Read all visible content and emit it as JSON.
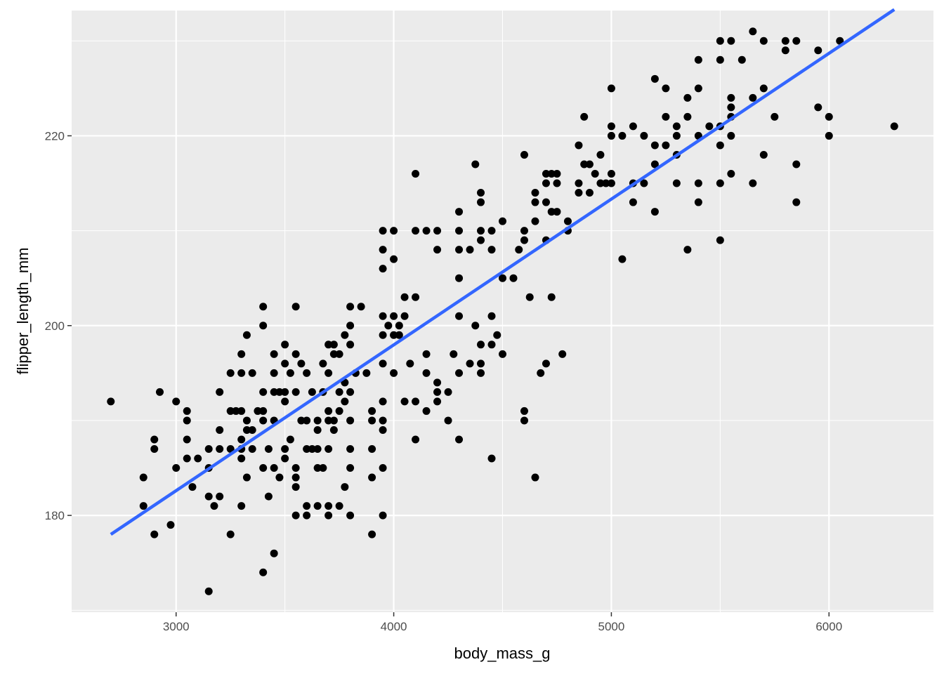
{
  "chart_data": {
    "type": "scatter",
    "title": "",
    "xlabel": "body_mass_g",
    "ylabel": "flipper_length_mm",
    "xlim": [
      2520,
      6480
    ],
    "ylim": [
      169.8,
      233.2
    ],
    "x_ticks": [
      3000,
      4000,
      5000,
      6000
    ],
    "x_tick_labels": [
      "3000",
      "4000",
      "5000",
      "6000"
    ],
    "y_ticks": [
      180,
      200,
      220
    ],
    "y_tick_labels": [
      "180",
      "200",
      "220"
    ],
    "grid": true,
    "panel_background": "#ebebeb",
    "grid_color": "#ffffff",
    "point_color": "#000000",
    "trend_line": {
      "method": "lm",
      "color": "#3366ff",
      "x": [
        2700,
        6300
      ],
      "y": [
        178.0,
        233.3
      ]
    },
    "points": [
      [
        2700,
        192
      ],
      [
        2850,
        184
      ],
      [
        2850,
        181
      ],
      [
        2900,
        188
      ],
      [
        2900,
        187
      ],
      [
        2900,
        178
      ],
      [
        2925,
        193
      ],
      [
        2975,
        179
      ],
      [
        3000,
        192
      ],
      [
        3000,
        185
      ],
      [
        3050,
        191
      ],
      [
        3050,
        190
      ],
      [
        3050,
        188
      ],
      [
        3050,
        186
      ],
      [
        3075,
        183
      ],
      [
        3100,
        186
      ],
      [
        3150,
        187
      ],
      [
        3150,
        185
      ],
      [
        3150,
        182
      ],
      [
        3150,
        172
      ],
      [
        3175,
        181
      ],
      [
        3200,
        193
      ],
      [
        3200,
        189
      ],
      [
        3200,
        187
      ],
      [
        3200,
        182
      ],
      [
        3250,
        195
      ],
      [
        3250,
        191
      ],
      [
        3250,
        187
      ],
      [
        3250,
        178
      ],
      [
        3275,
        191
      ],
      [
        3300,
        197
      ],
      [
        3300,
        195
      ],
      [
        3300,
        191
      ],
      [
        3300,
        188
      ],
      [
        3300,
        187
      ],
      [
        3300,
        186
      ],
      [
        3300,
        181
      ],
      [
        3325,
        199
      ],
      [
        3325,
        190
      ],
      [
        3325,
        189
      ],
      [
        3325,
        184
      ],
      [
        3350,
        195
      ],
      [
        3350,
        189
      ],
      [
        3350,
        187
      ],
      [
        3375,
        191
      ],
      [
        3400,
        202
      ],
      [
        3400,
        200
      ],
      [
        3400,
        193
      ],
      [
        3400,
        191
      ],
      [
        3400,
        190
      ],
      [
        3400,
        185
      ],
      [
        3400,
        174
      ],
      [
        3425,
        187
      ],
      [
        3425,
        182
      ],
      [
        3450,
        197
      ],
      [
        3450,
        195
      ],
      [
        3450,
        193
      ],
      [
        3450,
        190
      ],
      [
        3450,
        185
      ],
      [
        3450,
        176
      ],
      [
        3475,
        193
      ],
      [
        3475,
        184
      ],
      [
        3500,
        198
      ],
      [
        3500,
        196
      ],
      [
        3500,
        193
      ],
      [
        3500,
        192
      ],
      [
        3500,
        187
      ],
      [
        3500,
        186
      ],
      [
        3525,
        195
      ],
      [
        3525,
        188
      ],
      [
        3550,
        197
      ],
      [
        3550,
        193
      ],
      [
        3550,
        185
      ],
      [
        3550,
        184
      ],
      [
        3550,
        183
      ],
      [
        3550,
        180
      ],
      [
        3550,
        202
      ],
      [
        3575,
        196
      ],
      [
        3575,
        190
      ],
      [
        3600,
        195
      ],
      [
        3600,
        190
      ],
      [
        3600,
        187
      ],
      [
        3600,
        181
      ],
      [
        3600,
        180
      ],
      [
        3625,
        193
      ],
      [
        3625,
        187
      ],
      [
        3650,
        190
      ],
      [
        3650,
        189
      ],
      [
        3650,
        187
      ],
      [
        3650,
        185
      ],
      [
        3650,
        181
      ],
      [
        3675,
        196
      ],
      [
        3675,
        193
      ],
      [
        3675,
        185
      ],
      [
        3700,
        198
      ],
      [
        3700,
        195
      ],
      [
        3700,
        191
      ],
      [
        3700,
        190
      ],
      [
        3700,
        187
      ],
      [
        3700,
        181
      ],
      [
        3700,
        180
      ],
      [
        3725,
        198
      ],
      [
        3725,
        197
      ],
      [
        3725,
        190
      ],
      [
        3725,
        189
      ],
      [
        3750,
        197
      ],
      [
        3750,
        193
      ],
      [
        3750,
        191
      ],
      [
        3750,
        181
      ],
      [
        3775,
        199
      ],
      [
        3775,
        194
      ],
      [
        3775,
        192
      ],
      [
        3775,
        183
      ],
      [
        3800,
        202
      ],
      [
        3800,
        200
      ],
      [
        3800,
        198
      ],
      [
        3800,
        193
      ],
      [
        3800,
        190
      ],
      [
        3800,
        187
      ],
      [
        3800,
        185
      ],
      [
        3800,
        180
      ],
      [
        3825,
        195
      ],
      [
        3850,
        202
      ],
      [
        3875,
        195
      ],
      [
        3900,
        191
      ],
      [
        3900,
        190
      ],
      [
        3900,
        187
      ],
      [
        3900,
        184
      ],
      [
        3900,
        178
      ],
      [
        3950,
        210
      ],
      [
        3950,
        208
      ],
      [
        3950,
        206
      ],
      [
        3950,
        201
      ],
      [
        3950,
        199
      ],
      [
        3950,
        196
      ],
      [
        3950,
        192
      ],
      [
        3950,
        190
      ],
      [
        3950,
        189
      ],
      [
        3950,
        185
      ],
      [
        3950,
        180
      ],
      [
        3975,
        200
      ],
      [
        4000,
        210
      ],
      [
        4000,
        207
      ],
      [
        4000,
        201
      ],
      [
        4000,
        199
      ],
      [
        4000,
        195
      ],
      [
        4025,
        200
      ],
      [
        4025,
        199
      ],
      [
        4050,
        203
      ],
      [
        4050,
        201
      ],
      [
        4050,
        192
      ],
      [
        4075,
        196
      ],
      [
        4100,
        216
      ],
      [
        4100,
        210
      ],
      [
        4100,
        203
      ],
      [
        4100,
        192
      ],
      [
        4100,
        188
      ],
      [
        4150,
        210
      ],
      [
        4150,
        197
      ],
      [
        4150,
        195
      ],
      [
        4150,
        191
      ],
      [
        4200,
        210
      ],
      [
        4200,
        208
      ],
      [
        4200,
        194
      ],
      [
        4200,
        193
      ],
      [
        4200,
        192
      ],
      [
        4250,
        190
      ],
      [
        4250,
        193
      ],
      [
        4275,
        197
      ],
      [
        4300,
        212
      ],
      [
        4300,
        210
      ],
      [
        4300,
        208
      ],
      [
        4300,
        205
      ],
      [
        4300,
        201
      ],
      [
        4300,
        195
      ],
      [
        4300,
        188
      ],
      [
        4350,
        196
      ],
      [
        4350,
        208
      ],
      [
        4375,
        217
      ],
      [
        4375,
        200
      ],
      [
        4400,
        214
      ],
      [
        4400,
        213
      ],
      [
        4400,
        210
      ],
      [
        4400,
        209
      ],
      [
        4400,
        198
      ],
      [
        4400,
        196
      ],
      [
        4400,
        195
      ],
      [
        4450,
        210
      ],
      [
        4450,
        208
      ],
      [
        4450,
        201
      ],
      [
        4450,
        198
      ],
      [
        4450,
        186
      ],
      [
        4475,
        199
      ],
      [
        4500,
        211
      ],
      [
        4500,
        205
      ],
      [
        4500,
        197
      ],
      [
        4550,
        205
      ],
      [
        4575,
        208
      ],
      [
        4600,
        218
      ],
      [
        4600,
        210
      ],
      [
        4600,
        209
      ],
      [
        4600,
        191
      ],
      [
        4600,
        190
      ],
      [
        4625,
        203
      ],
      [
        4650,
        214
      ],
      [
        4650,
        213
      ],
      [
        4650,
        211
      ],
      [
        4650,
        184
      ],
      [
        4675,
        195
      ],
      [
        4700,
        216
      ],
      [
        4700,
        215
      ],
      [
        4700,
        213
      ],
      [
        4700,
        209
      ],
      [
        4700,
        196
      ],
      [
        4725,
        216
      ],
      [
        4725,
        212
      ],
      [
        4725,
        203
      ],
      [
        4750,
        216
      ],
      [
        4750,
        215
      ],
      [
        4750,
        212
      ],
      [
        4775,
        197
      ],
      [
        4800,
        211
      ],
      [
        4800,
        210
      ],
      [
        4850,
        219
      ],
      [
        4850,
        215
      ],
      [
        4850,
        214
      ],
      [
        4875,
        222
      ],
      [
        4875,
        217
      ],
      [
        4900,
        217
      ],
      [
        4900,
        214
      ],
      [
        4925,
        216
      ],
      [
        4950,
        218
      ],
      [
        4950,
        215
      ],
      [
        4975,
        215
      ],
      [
        5000,
        225
      ],
      [
        5000,
        221
      ],
      [
        5000,
        220
      ],
      [
        5000,
        216
      ],
      [
        5000,
        215
      ],
      [
        5050,
        220
      ],
      [
        5050,
        207
      ],
      [
        5100,
        221
      ],
      [
        5100,
        215
      ],
      [
        5100,
        213
      ],
      [
        5150,
        220
      ],
      [
        5150,
        215
      ],
      [
        5200,
        226
      ],
      [
        5200,
        219
      ],
      [
        5200,
        217
      ],
      [
        5200,
        212
      ],
      [
        5250,
        225
      ],
      [
        5250,
        222
      ],
      [
        5250,
        219
      ],
      [
        5300,
        221
      ],
      [
        5300,
        220
      ],
      [
        5300,
        218
      ],
      [
        5300,
        215
      ],
      [
        5350,
        224
      ],
      [
        5350,
        222
      ],
      [
        5350,
        208
      ],
      [
        5400,
        228
      ],
      [
        5400,
        225
      ],
      [
        5400,
        220
      ],
      [
        5400,
        215
      ],
      [
        5400,
        213
      ],
      [
        5450,
        221
      ],
      [
        5500,
        230
      ],
      [
        5500,
        228
      ],
      [
        5500,
        221
      ],
      [
        5500,
        219
      ],
      [
        5500,
        215
      ],
      [
        5500,
        209
      ],
      [
        5550,
        230
      ],
      [
        5550,
        224
      ],
      [
        5550,
        223
      ],
      [
        5550,
        222
      ],
      [
        5550,
        220
      ],
      [
        5550,
        216
      ],
      [
        5600,
        228
      ],
      [
        5650,
        231
      ],
      [
        5650,
        224
      ],
      [
        5650,
        215
      ],
      [
        5700,
        230
      ],
      [
        5700,
        225
      ],
      [
        5700,
        218
      ],
      [
        5750,
        222
      ],
      [
        5800,
        230
      ],
      [
        5800,
        229
      ],
      [
        5850,
        230
      ],
      [
        5850,
        217
      ],
      [
        5850,
        213
      ],
      [
        5950,
        229
      ],
      [
        5950,
        223
      ],
      [
        6000,
        222
      ],
      [
        6000,
        220
      ],
      [
        6050,
        230
      ],
      [
        6300,
        221
      ]
    ]
  }
}
